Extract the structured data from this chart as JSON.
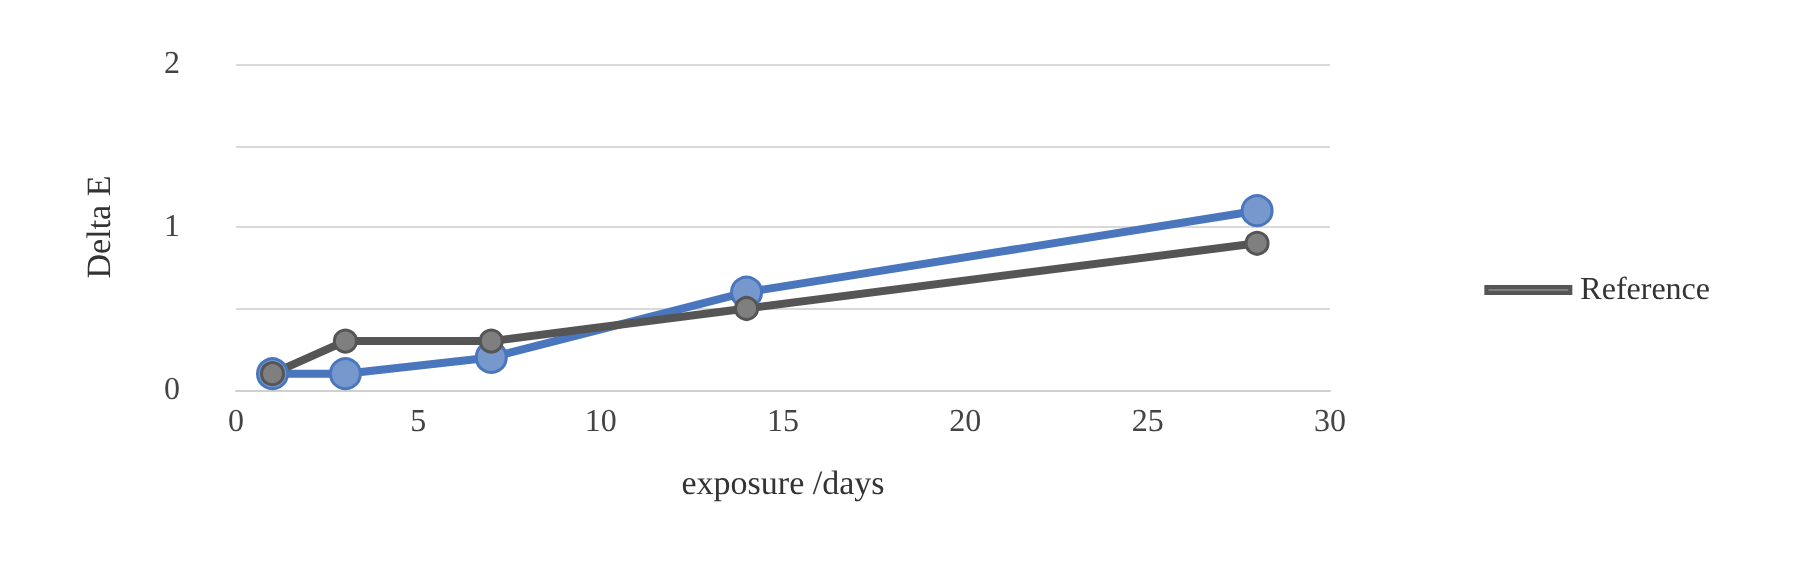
{
  "chart_data": {
    "type": "line",
    "xlabel": "exposure /days",
    "ylabel": "Delta E",
    "x": [
      1,
      3,
      7,
      14,
      28
    ],
    "series": [
      {
        "color": "#4a76bd",
        "values": [
          0.1,
          0.1,
          0.2,
          0.6,
          1.1
        ]
      },
      {
        "name": "Reference",
        "color": "#555555",
        "values": [
          0.1,
          0.3,
          0.3,
          0.5,
          0.9
        ]
      }
    ],
    "xlim": [
      0,
      30
    ],
    "xticks": [
      0,
      5,
      10,
      15,
      20,
      25,
      30
    ],
    "ylim": [
      0,
      2
    ],
    "yticks": [
      0,
      1,
      2
    ],
    "grid": "y",
    "legend": "right",
    "marker": "circle"
  }
}
